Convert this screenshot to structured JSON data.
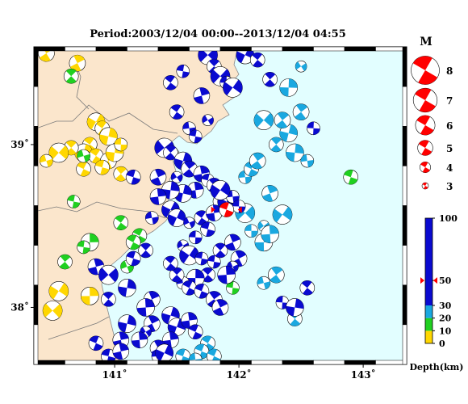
{
  "title": "Period:2003/12/04 00:00--2013/12/04 04:55",
  "axes": {
    "x_ticks": [
      {
        "value": 141,
        "label": "141˚"
      },
      {
        "value": 142,
        "label": "142˚"
      },
      {
        "value": 143,
        "label": "143˚"
      }
    ],
    "y_ticks": [
      {
        "value": 39,
        "label": "39˚"
      },
      {
        "value": 38,
        "label": "38˚"
      }
    ],
    "lon_range": [
      140.35,
      143.35
    ],
    "lat_range": [
      37.65,
      39.6
    ]
  },
  "magnitude_legend": {
    "title": "M",
    "items": [
      {
        "label": "8",
        "value": 8
      },
      {
        "label": "7",
        "value": 7
      },
      {
        "label": "6",
        "value": 6
      },
      {
        "label": "5",
        "value": 5
      },
      {
        "label": "4",
        "value": 4
      },
      {
        "label": "3",
        "value": 3
      }
    ]
  },
  "depth_scale": {
    "label": "Depth(km)",
    "ticks": [
      {
        "label": "100",
        "value": 100
      },
      {
        "label": "50",
        "value": 50
      },
      {
        "label": "30",
        "value": 30
      },
      {
        "label": "20",
        "value": 20
      },
      {
        "label": "10",
        "value": 10
      },
      {
        "label": "0",
        "value": 0
      }
    ],
    "marker_value": 50,
    "colors": {
      "shallow": "#ffd700",
      "green": "#20d020",
      "cyan": "#1aa8e0",
      "deep": "#0a0ad0"
    }
  },
  "colors": {
    "land": "#fbe6cc",
    "sea": "#e2feff",
    "highlight": "#ff0000"
  },
  "chart_data": {
    "type": "scatter",
    "title": "Period:2003/12/04 00:00--2013/12/04 04:55",
    "xlabel": "",
    "ylabel": "",
    "x_range": [
      140.35,
      143.35
    ],
    "y_range": [
      37.65,
      39.6
    ],
    "highlight_event": {
      "lon": 141.9,
      "lat": 38.6,
      "depth": 50
    },
    "series": [
      {
        "name": "0-10 km",
        "color": "#ffd700",
        "points": [
          [
            140.45,
            39.56
          ],
          [
            140.7,
            39.5
          ],
          [
            140.85,
            39.14
          ],
          [
            140.9,
            39.1
          ],
          [
            140.95,
            39.05
          ],
          [
            140.8,
            39.0
          ],
          [
            140.75,
            38.95
          ],
          [
            140.65,
            38.98
          ],
          [
            140.85,
            38.93
          ],
          [
            140.95,
            38.9
          ],
          [
            141.0,
            38.95
          ],
          [
            141.05,
            39.0
          ],
          [
            140.9,
            38.86
          ],
          [
            140.75,
            38.85
          ],
          [
            141.05,
            38.82
          ],
          [
            140.55,
            38.95
          ],
          [
            140.45,
            38.9
          ],
          [
            140.55,
            38.1
          ],
          [
            140.5,
            37.98
          ],
          [
            140.8,
            38.07
          ]
        ]
      },
      {
        "name": "10-20 km",
        "color": "#20d020",
        "points": [
          [
            140.65,
            39.42
          ],
          [
            140.75,
            38.93
          ],
          [
            140.67,
            38.65
          ],
          [
            141.05,
            38.52
          ],
          [
            141.2,
            38.44
          ],
          [
            141.15,
            38.4
          ],
          [
            140.8,
            38.4
          ],
          [
            140.75,
            38.37
          ],
          [
            140.6,
            38.28
          ],
          [
            141.1,
            38.25
          ],
          [
            141.95,
            38.12
          ],
          [
            142.9,
            38.8
          ]
        ]
      },
      {
        "name": "20-30 km",
        "color": "#1aa8e0",
        "points": [
          [
            141.75,
            37.78
          ],
          [
            141.7,
            37.73
          ],
          [
            141.8,
            37.7
          ],
          [
            141.55,
            37.7
          ],
          [
            141.65,
            37.68
          ],
          [
            142.45,
            37.93
          ],
          [
            142.2,
            38.15
          ],
          [
            142.3,
            38.2
          ],
          [
            142.2,
            38.4
          ],
          [
            142.1,
            38.47
          ],
          [
            142.2,
            38.5
          ],
          [
            142.35,
            38.57
          ],
          [
            142.25,
            38.7
          ],
          [
            142.05,
            38.8
          ],
          [
            142.1,
            38.85
          ],
          [
            142.15,
            38.9
          ],
          [
            142.3,
            39.0
          ],
          [
            142.4,
            39.07
          ],
          [
            142.35,
            39.15
          ],
          [
            142.5,
            39.2
          ],
          [
            142.45,
            38.95
          ],
          [
            142.55,
            38.9
          ],
          [
            142.4,
            39.35
          ],
          [
            142.5,
            39.48
          ],
          [
            142.2,
            39.15
          ],
          [
            141.85,
            38.65
          ],
          [
            142.05,
            38.58
          ],
          [
            142.25,
            38.45
          ]
        ]
      },
      {
        "name": "30-100 km",
        "color": "#0a0ad0",
        "points": [
          [
            141.75,
            39.55
          ],
          [
            142.05,
            39.55
          ],
          [
            142.15,
            39.52
          ],
          [
            141.8,
            39.48
          ],
          [
            141.85,
            39.42
          ],
          [
            141.9,
            39.38
          ],
          [
            141.95,
            39.35
          ],
          [
            142.25,
            39.4
          ],
          [
            141.55,
            39.45
          ],
          [
            141.7,
            39.3
          ],
          [
            141.45,
            39.38
          ],
          [
            141.5,
            39.2
          ],
          [
            141.6,
            39.1
          ],
          [
            141.65,
            39.05
          ],
          [
            141.75,
            39.15
          ],
          [
            141.4,
            38.98
          ],
          [
            141.45,
            38.95
          ],
          [
            141.55,
            38.9
          ],
          [
            141.6,
            38.85
          ],
          [
            141.5,
            38.8
          ],
          [
            141.7,
            38.82
          ],
          [
            141.75,
            38.78
          ],
          [
            141.8,
            38.75
          ],
          [
            141.65,
            38.72
          ],
          [
            141.55,
            38.7
          ],
          [
            141.45,
            38.72
          ],
          [
            141.35,
            38.68
          ],
          [
            141.45,
            38.6
          ],
          [
            141.5,
            38.55
          ],
          [
            141.6,
            38.52
          ],
          [
            141.7,
            38.55
          ],
          [
            141.8,
            38.58
          ],
          [
            141.75,
            38.48
          ],
          [
            141.65,
            38.43
          ],
          [
            141.55,
            38.38
          ],
          [
            141.6,
            38.32
          ],
          [
            141.7,
            38.3
          ],
          [
            141.8,
            38.28
          ],
          [
            141.85,
            38.35
          ],
          [
            141.95,
            38.4
          ],
          [
            142.0,
            38.3
          ],
          [
            141.95,
            38.25
          ],
          [
            141.9,
            38.2
          ],
          [
            141.75,
            38.2
          ],
          [
            141.65,
            38.18
          ],
          [
            141.55,
            38.15
          ],
          [
            141.5,
            38.2
          ],
          [
            141.45,
            38.27
          ],
          [
            141.6,
            38.12
          ],
          [
            141.7,
            38.1
          ],
          [
            141.8,
            38.05
          ],
          [
            141.85,
            38.0
          ],
          [
            141.3,
            38.05
          ],
          [
            141.25,
            38.0
          ],
          [
            141.3,
            37.9
          ],
          [
            141.25,
            37.85
          ],
          [
            141.45,
            37.95
          ],
          [
            141.5,
            37.88
          ],
          [
            141.6,
            37.92
          ],
          [
            141.65,
            37.85
          ],
          [
            141.45,
            37.8
          ],
          [
            141.35,
            37.75
          ],
          [
            141.2,
            37.8
          ],
          [
            141.05,
            37.8
          ],
          [
            140.85,
            37.78
          ],
          [
            140.95,
            37.7
          ],
          [
            141.05,
            37.73
          ],
          [
            141.35,
            37.7
          ],
          [
            141.4,
            37.72
          ],
          [
            141.1,
            37.9
          ],
          [
            140.95,
            38.05
          ],
          [
            141.1,
            38.12
          ],
          [
            140.85,
            38.25
          ],
          [
            140.95,
            38.2
          ],
          [
            141.15,
            38.3
          ],
          [
            141.25,
            38.35
          ],
          [
            141.3,
            38.55
          ],
          [
            141.35,
            38.8
          ],
          [
            141.15,
            38.8
          ],
          [
            141.9,
            38.65
          ],
          [
            141.95,
            38.68
          ],
          [
            142.0,
            38.62
          ],
          [
            141.85,
            38.72
          ],
          [
            142.55,
            38.12
          ],
          [
            142.35,
            38.03
          ],
          [
            142.45,
            38.0
          ],
          [
            142.6,
            39.1
          ]
        ]
      }
    ]
  }
}
